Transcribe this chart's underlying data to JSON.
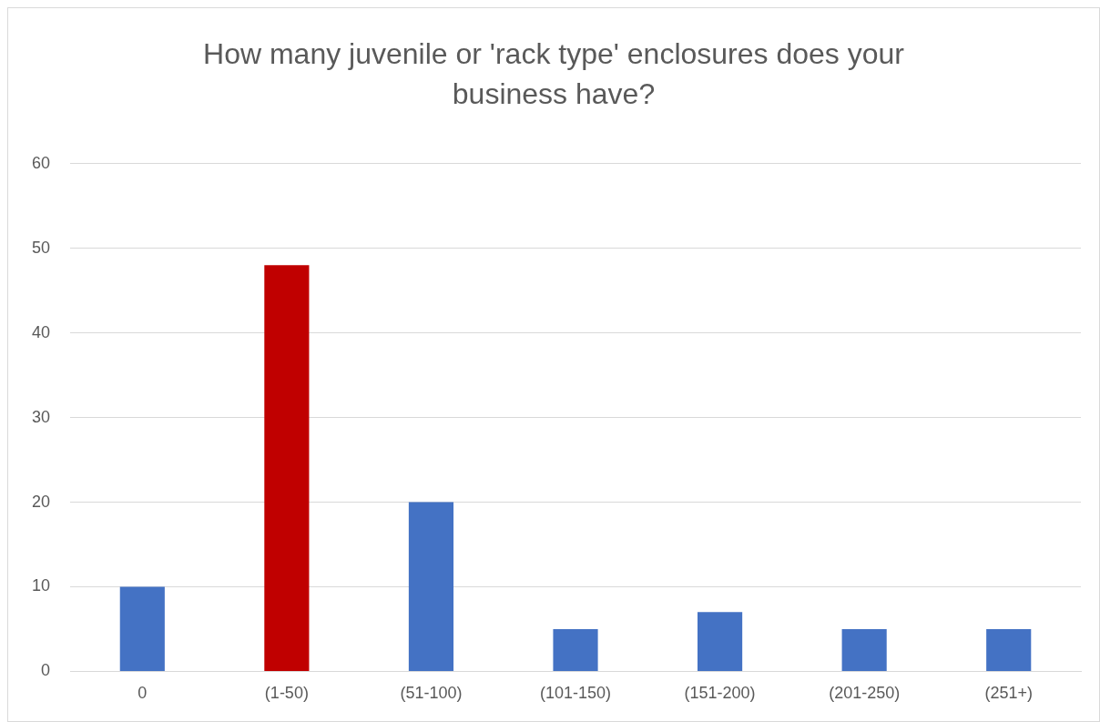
{
  "chart_data": {
    "type": "bar",
    "title": "How many juvenile or 'rack type' enclosures does your business have?",
    "categories": [
      "0",
      "(1-50)",
      "(51-100)",
      "(101-150)",
      "(151-200)",
      "(201-250)",
      "(251+)"
    ],
    "values": [
      10,
      48,
      20,
      5,
      7,
      5,
      5
    ],
    "colors": [
      "#4472c4",
      "#c00000",
      "#4472c4",
      "#4472c4",
      "#4472c4",
      "#4472c4",
      "#4472c4"
    ],
    "ylim": [
      0,
      60
    ],
    "yticks": [
      0,
      10,
      20,
      30,
      40,
      50,
      60
    ],
    "grid": "y",
    "legend": false
  }
}
